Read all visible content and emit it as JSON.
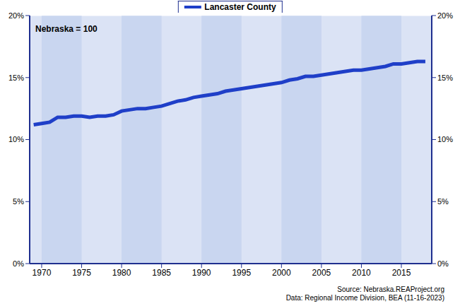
{
  "chart_data": {
    "type": "line",
    "annotations": [
      "Nebraska = 100"
    ],
    "source": [
      "Source: Nebraska.REAProject.org",
      "Data: Regional Income Division, BEA (11-16-2023)"
    ],
    "x": [
      1969,
      1970,
      1971,
      1972,
      1973,
      1974,
      1975,
      1976,
      1977,
      1978,
      1979,
      1980,
      1981,
      1982,
      1983,
      1984,
      1985,
      1986,
      1987,
      1988,
      1989,
      1990,
      1991,
      1992,
      1993,
      1994,
      1995,
      1996,
      1997,
      1998,
      1999,
      2000,
      2001,
      2002,
      2003,
      2004,
      2005,
      2006,
      2007,
      2008,
      2009,
      2010,
      2011,
      2012,
      2013,
      2014,
      2015,
      2016,
      2017,
      2018
    ],
    "series": [
      {
        "name": "Lancaster County",
        "color": "#1f3fc8",
        "values": [
          11.2,
          11.3,
          11.4,
          11.8,
          11.8,
          11.9,
          11.9,
          11.8,
          11.9,
          11.9,
          12.0,
          12.3,
          12.4,
          12.5,
          12.5,
          12.6,
          12.7,
          12.9,
          13.1,
          13.2,
          13.4,
          13.5,
          13.6,
          13.7,
          13.9,
          14.0,
          14.1,
          14.2,
          14.3,
          14.4,
          14.5,
          14.6,
          14.8,
          14.9,
          15.1,
          15.1,
          15.2,
          15.3,
          15.4,
          15.5,
          15.6,
          15.6,
          15.7,
          15.8,
          15.9,
          16.1,
          16.1,
          16.2,
          16.3,
          16.3
        ]
      }
    ],
    "xlim": [
      1968.5,
      2018.8
    ],
    "xticks": [
      1970,
      1975,
      1980,
      1985,
      1990,
      1995,
      2000,
      2005,
      2010,
      2015
    ],
    "ylim": [
      0,
      20
    ],
    "yticks": [
      {
        "value": 0,
        "label": "0%"
      },
      {
        "value": 5,
        "label": "5%"
      },
      {
        "value": 10,
        "label": "10%"
      },
      {
        "value": 15,
        "label": "15%"
      },
      {
        "value": 20,
        "label": "20%"
      }
    ],
    "grid": true,
    "legend": "top"
  }
}
